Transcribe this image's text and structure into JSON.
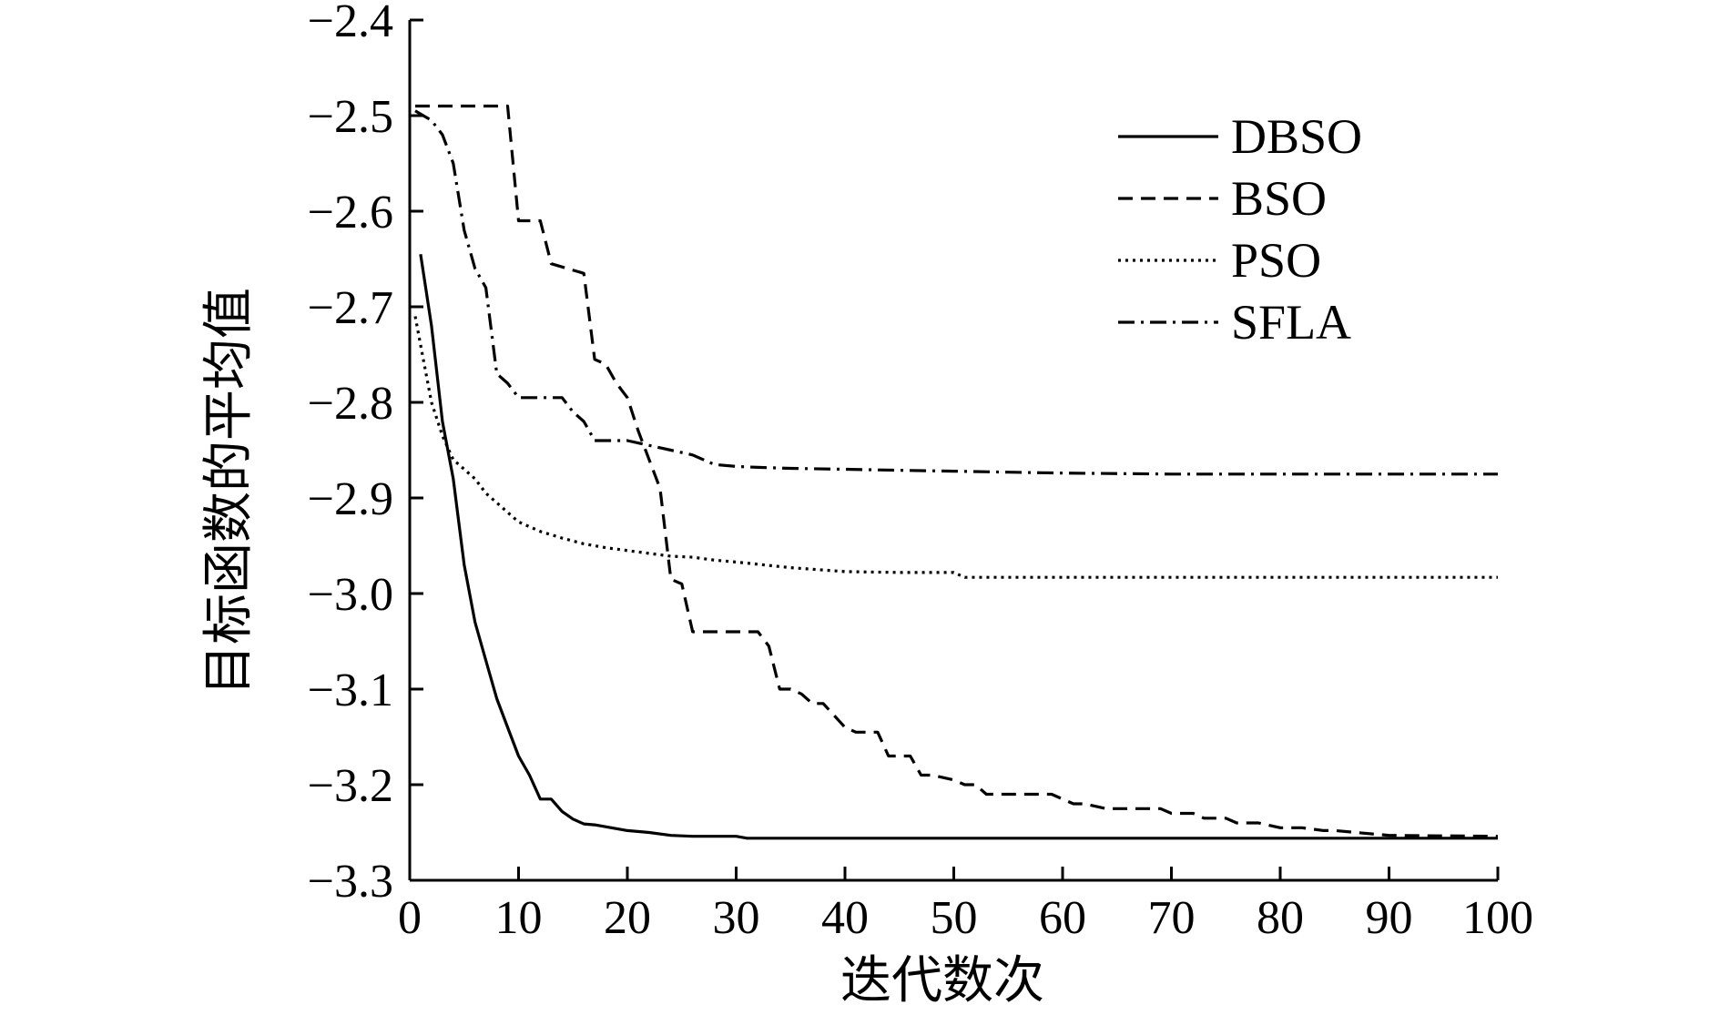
{
  "chart_data": {
    "type": "line",
    "title": "",
    "xlabel": "迭代数次",
    "ylabel": "目标函数的平均值",
    "xlim": [
      0,
      100
    ],
    "ylim": [
      -3.3,
      -2.4
    ],
    "xticks": [
      "0",
      "10",
      "20",
      "30",
      "40",
      "50",
      "60",
      "70",
      "80",
      "90",
      "100"
    ],
    "yticks": [
      "-2.4",
      "-2.5",
      "-2.6",
      "-2.7",
      "-2.8",
      "-2.9",
      "-3.0",
      "-3.1",
      "-3.2",
      "-3.3"
    ],
    "legend_position": "top-right",
    "grid": false,
    "series": [
      {
        "name": "DBSO",
        "dash": "solid",
        "x": [
          1,
          2,
          3,
          4,
          5,
          6,
          7,
          8,
          9,
          10,
          11,
          12,
          13,
          14,
          15,
          16,
          17,
          18,
          19,
          20,
          22,
          24,
          26,
          30,
          31,
          40,
          50,
          60,
          70,
          80,
          90,
          100
        ],
        "y": [
          -2.645,
          -2.72,
          -2.82,
          -2.88,
          -2.97,
          -3.03,
          -3.07,
          -3.11,
          -3.14,
          -3.17,
          -3.19,
          -3.215,
          -3.215,
          -3.228,
          -3.236,
          -3.241,
          -3.242,
          -3.244,
          -3.246,
          -3.248,
          -3.25,
          -3.253,
          -3.254,
          -3.254,
          -3.256,
          -3.256,
          -3.256,
          -3.256,
          -3.256,
          -3.256,
          -3.256,
          -3.256
        ]
      },
      {
        "name": "BSO",
        "dash": "dashed",
        "x": [
          0.5,
          9,
          10,
          12,
          13,
          16,
          17,
          18,
          19,
          20,
          21,
          23,
          24,
          25,
          26,
          32,
          33,
          34,
          35,
          36,
          37,
          38,
          40,
          41,
          43,
          44,
          45,
          46,
          47,
          48,
          50,
          51,
          52,
          53,
          55,
          59,
          61,
          62,
          64,
          69,
          70,
          72,
          73,
          75,
          76,
          78,
          80,
          82,
          84,
          85,
          90,
          100
        ],
        "y": [
          -2.49,
          -2.49,
          -2.61,
          -2.61,
          -2.655,
          -2.665,
          -2.755,
          -2.76,
          -2.78,
          -2.795,
          -2.83,
          -2.89,
          -2.985,
          -2.99,
          -3.04,
          -3.04,
          -3.055,
          -3.1,
          -3.1,
          -3.105,
          -3.115,
          -3.115,
          -3.14,
          -3.145,
          -3.145,
          -3.17,
          -3.17,
          -3.17,
          -3.19,
          -3.19,
          -3.195,
          -3.2,
          -3.2,
          -3.21,
          -3.21,
          -3.21,
          -3.22,
          -3.22,
          -3.225,
          -3.225,
          -3.23,
          -3.23,
          -3.235,
          -3.235,
          -3.24,
          -3.24,
          -3.245,
          -3.245,
          -3.248,
          -3.248,
          -3.253,
          -3.254
        ]
      },
      {
        "name": "PSO",
        "dash": "dotted",
        "x": [
          0.5,
          1,
          2,
          3,
          4,
          5,
          6,
          7,
          8,
          9,
          10,
          12,
          14,
          16,
          18,
          20,
          22,
          24,
          26,
          28,
          30,
          35,
          40,
          45,
          50,
          51,
          60,
          70,
          80,
          90,
          100
        ],
        "y": [
          -2.71,
          -2.74,
          -2.8,
          -2.835,
          -2.86,
          -2.87,
          -2.88,
          -2.895,
          -2.905,
          -2.915,
          -2.925,
          -2.935,
          -2.942,
          -2.948,
          -2.952,
          -2.955,
          -2.958,
          -2.961,
          -2.962,
          -2.965,
          -2.967,
          -2.973,
          -2.977,
          -2.978,
          -2.978,
          -2.983,
          -2.983,
          -2.983,
          -2.983,
          -2.983,
          -2.983
        ]
      },
      {
        "name": "SFLA",
        "dash": "dash-dot",
        "x": [
          0.5,
          2,
          3,
          4,
          5,
          6,
          7,
          8,
          9,
          10,
          12,
          14,
          15,
          16,
          17,
          18,
          20,
          22,
          24,
          26,
          28,
          30,
          32,
          35,
          40,
          45,
          50,
          55,
          60,
          70,
          80,
          90,
          100
        ],
        "y": [
          -2.495,
          -2.505,
          -2.52,
          -2.55,
          -2.62,
          -2.66,
          -2.68,
          -2.77,
          -2.78,
          -2.795,
          -2.795,
          -2.795,
          -2.81,
          -2.82,
          -2.84,
          -2.84,
          -2.84,
          -2.845,
          -2.85,
          -2.855,
          -2.865,
          -2.867,
          -2.868,
          -2.869,
          -2.87,
          -2.871,
          -2.872,
          -2.873,
          -2.874,
          -2.875,
          -2.875,
          -2.875,
          -2.875
        ]
      }
    ]
  }
}
